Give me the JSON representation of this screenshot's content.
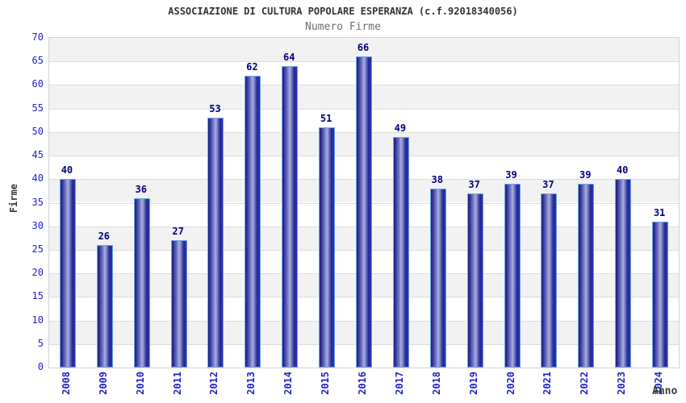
{
  "header": {
    "title": "ASSOCIAZIONE DI CULTURA POPOLARE ESPERANZA (c.f.92018340056)",
    "subtitle": "Numero Firme"
  },
  "chart_data": {
    "type": "bar",
    "title": "ASSOCIAZIONE DI CULTURA POPOLARE ESPERANZA (c.f.92018340056)",
    "subtitle": "Numero Firme",
    "xlabel": "Anno",
    "ylabel": "Firme",
    "categories": [
      "2008",
      "2009",
      "2010",
      "2011",
      "2012",
      "2013",
      "2014",
      "2015",
      "2016",
      "2017",
      "2018",
      "2019",
      "2020",
      "2021",
      "2022",
      "2023",
      "2024"
    ],
    "values": [
      40,
      26,
      36,
      27,
      53,
      62,
      64,
      51,
      66,
      49,
      38,
      37,
      39,
      37,
      39,
      40,
      31
    ],
    "ylim": [
      0,
      70
    ],
    "ytick_step": 5,
    "grid": true,
    "legend": "none",
    "colors": {
      "axis_text": "#2222cc",
      "value_label": "#000080",
      "title_text": "#333333",
      "subtitle_text": "#6e6e6e",
      "band_gray": "#f2f2f2",
      "band_white": "#ffffff",
      "gridline": "#dcdcdc",
      "plot_border": "#d4d4d4",
      "bar_border": "#6da6e8",
      "bar_gradient": [
        "#1b1b7e 0%",
        "#34349c 12%",
        "#7b82c6 38%",
        "#aab1e0 50%",
        "#7b82c6 62%",
        "#2e2e94 80%",
        "#24249c 88%",
        "#2d3fd4 94%",
        "#1b1b7e 100%"
      ]
    }
  }
}
